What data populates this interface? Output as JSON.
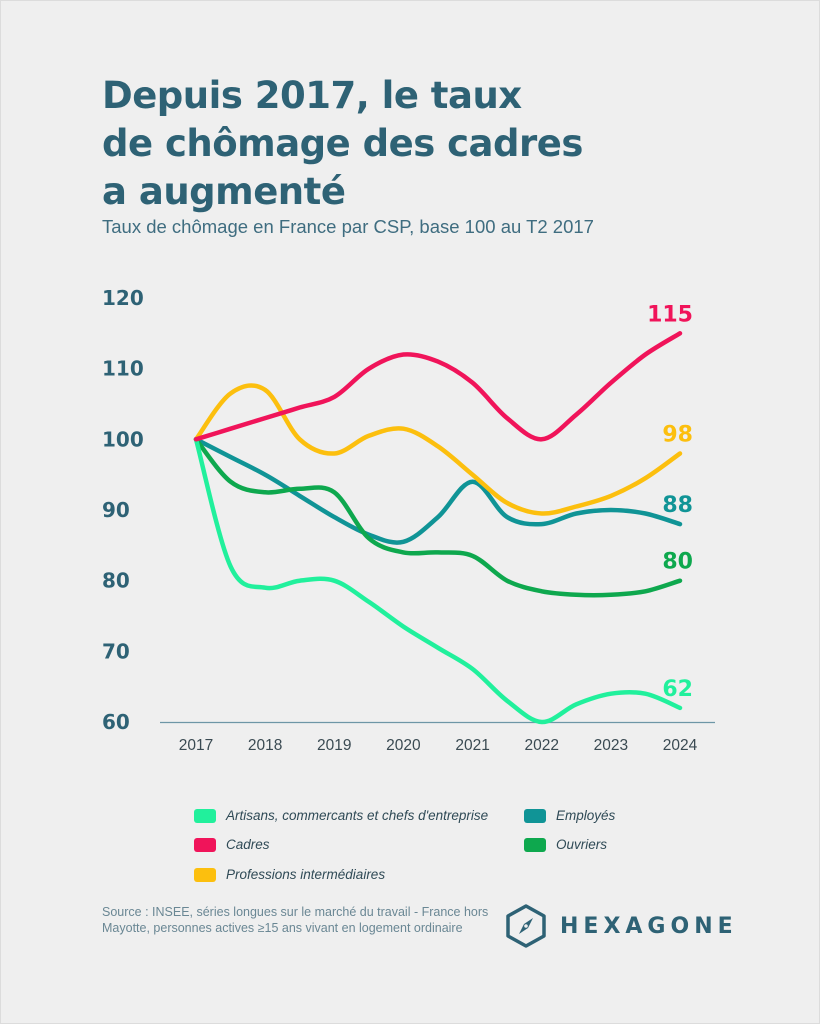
{
  "header": {
    "title_lines": [
      "Depuis 2017, le taux",
      "de chômage des cadres",
      "a augmenté"
    ],
    "subtitle": "Taux de chômage en France par CSP, base 100 au T2 2017"
  },
  "chart_data": {
    "type": "line",
    "title": "Depuis 2017, le taux de chômage des cadres a augmenté",
    "subtitle": "Taux de chômage en France par CSP, base 100 au T2 2017",
    "xlabel": "",
    "ylabel": "",
    "x": [
      2017,
      2017.5,
      2018,
      2018.5,
      2019,
      2019.5,
      2020,
      2020.5,
      2021,
      2021.5,
      2022,
      2022.5,
      2023,
      2023.5,
      2024
    ],
    "xticks": [
      "2017",
      "2018",
      "2019",
      "2020",
      "2021",
      "2022",
      "2023",
      "2024"
    ],
    "yticks": [
      60,
      70,
      80,
      90,
      100,
      110,
      120
    ],
    "ylim": [
      60,
      120
    ],
    "xlim": [
      2017,
      2024
    ],
    "grid": false,
    "legend_position": "bottom",
    "series": [
      {
        "name": "Artisans, commercants et chefs d'entreprise",
        "color": "#21f09c",
        "values": [
          100,
          82,
          79,
          80,
          80,
          77,
          73.5,
          70.5,
          67.5,
          63,
          60,
          62.5,
          64,
          64,
          62
        ],
        "end_label": "62"
      },
      {
        "name": "Cadres",
        "color": "#f0145a",
        "values": [
          100,
          101.5,
          103,
          104.5,
          106,
          110,
          112,
          111,
          108,
          103,
          100,
          103.5,
          108,
          112,
          115
        ],
        "end_label": "115"
      },
      {
        "name": "Professions intermédiaires",
        "color": "#fcbf0e",
        "values": [
          100,
          106.5,
          107,
          100,
          98,
          100.5,
          101.5,
          99,
          95,
          91,
          89.5,
          90.5,
          92,
          94.5,
          98
        ],
        "end_label": "98"
      },
      {
        "name": "Employés",
        "color": "#109496",
        "values": [
          100,
          97.5,
          95,
          92,
          89,
          86.5,
          85.5,
          89,
          94,
          89,
          88,
          89.5,
          90,
          89.5,
          88
        ],
        "end_label": "88"
      },
      {
        "name": "Ouvriers",
        "color": "#0ea84e",
        "values": [
          100,
          94,
          92.5,
          93,
          92.5,
          86,
          84,
          84,
          83.5,
          80,
          78.5,
          78,
          78,
          78.5,
          80
        ],
        "end_label": "80"
      }
    ]
  },
  "source": "Source : INSEE, séries longues sur le marché du travail - France hors Mayotte, personnes actives ≥15 ans vivant en logement ordinaire",
  "logo": {
    "text": "HEXAGONE",
    "icon": "compass-hexagon-icon"
  },
  "colors": {
    "title": "#2e6275",
    "background": "#efefef"
  }
}
